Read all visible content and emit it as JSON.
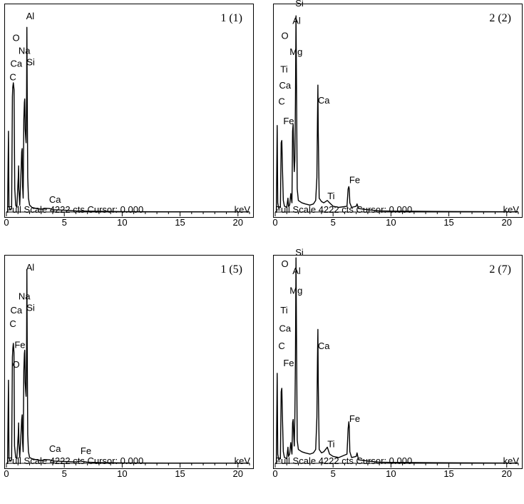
{
  "chart_data": [
    {
      "type": "line",
      "title": "1 (1)",
      "xlabel": "keV",
      "xlim": [
        0,
        21
      ],
      "x_ticks": [
        "0",
        "5",
        "10",
        "15",
        "20"
      ],
      "footer": "Full Scale 4222 cts Cursor: 0.000",
      "unit": "keV",
      "spectrum": [
        [
          0,
          0
        ],
        [
          0.1,
          0.4
        ],
        [
          0.18,
          70
        ],
        [
          0.22,
          5
        ],
        [
          0.3,
          2
        ],
        [
          0.45,
          3
        ],
        [
          0.52,
          100
        ],
        [
          0.55,
          108
        ],
        [
          0.6,
          112
        ],
        [
          0.66,
          106
        ],
        [
          0.72,
          20
        ],
        [
          0.8,
          6
        ],
        [
          0.9,
          4
        ],
        [
          1.02,
          30
        ],
        [
          1.05,
          40
        ],
        [
          1.08,
          20
        ],
        [
          1.15,
          6
        ],
        [
          1.28,
          40
        ],
        [
          1.32,
          52
        ],
        [
          1.36,
          55
        ],
        [
          1.4,
          22
        ],
        [
          1.45,
          12
        ],
        [
          1.5,
          80
        ],
        [
          1.55,
          95
        ],
        [
          1.58,
          98
        ],
        [
          1.62,
          72
        ],
        [
          1.67,
          64
        ],
        [
          1.7,
          60
        ],
        [
          1.74,
          100
        ],
        [
          1.77,
          160
        ],
        [
          1.8,
          100
        ],
        [
          1.84,
          30
        ],
        [
          1.9,
          12
        ],
        [
          2.0,
          6
        ],
        [
          2.2,
          4
        ],
        [
          2.6,
          3
        ],
        [
          3.0,
          2.5
        ],
        [
          3.4,
          3.2
        ],
        [
          3.7,
          3
        ],
        [
          4.1,
          2
        ],
        [
          4.5,
          1.8
        ],
        [
          5.0,
          1.6
        ],
        [
          6.0,
          1
        ],
        [
          8.0,
          0.6
        ],
        [
          10,
          0.4
        ],
        [
          14,
          0.2
        ],
        [
          21,
          0.1
        ]
      ],
      "peaks": [
        {
          "label": "Al",
          "x": 1.7,
          "y": 167
        },
        {
          "label": "O",
          "x": 0.52,
          "y": 148
        },
        {
          "label": "Na",
          "x": 1.04,
          "y": 137
        },
        {
          "label": "Si",
          "x": 1.74,
          "y": 127
        },
        {
          "label": "Ca",
          "x": 0.34,
          "y": 126
        },
        {
          "label": "C",
          "x": 0.27,
          "y": 114
        },
        {
          "label": "Ca",
          "x": 3.69,
          "y": 8
        }
      ]
    },
    {
      "type": "line",
      "title": "2 (2)",
      "xlabel": "keV",
      "xlim": [
        0,
        21
      ],
      "x_ticks": [
        "0",
        "5",
        "10",
        "15",
        "20"
      ],
      "footer": "Full Scale 4222 cts Cursor: 0.000",
      "unit": "keV",
      "spectrum": [
        [
          0,
          0
        ],
        [
          0.1,
          0.5
        ],
        [
          0.17,
          75
        ],
        [
          0.22,
          8
        ],
        [
          0.3,
          3
        ],
        [
          0.45,
          4
        ],
        [
          0.52,
          60
        ],
        [
          0.57,
          62
        ],
        [
          0.62,
          40
        ],
        [
          0.7,
          10
        ],
        [
          0.8,
          5
        ],
        [
          1.0,
          4
        ],
        [
          1.1,
          12
        ],
        [
          1.15,
          5
        ],
        [
          1.25,
          6
        ],
        [
          1.35,
          16
        ],
        [
          1.45,
          8
        ],
        [
          1.5,
          70
        ],
        [
          1.55,
          76
        ],
        [
          1.6,
          50
        ],
        [
          1.65,
          35
        ],
        [
          1.7,
          45
        ],
        [
          1.75,
          95
        ],
        [
          1.8,
          170
        ],
        [
          1.84,
          110
        ],
        [
          1.9,
          20
        ],
        [
          2.0,
          10
        ],
        [
          2.3,
          8
        ],
        [
          2.6,
          7
        ],
        [
          3.0,
          6
        ],
        [
          3.3,
          7
        ],
        [
          3.5,
          10
        ],
        [
          3.6,
          30
        ],
        [
          3.65,
          80
        ],
        [
          3.69,
          110
        ],
        [
          3.72,
          70
        ],
        [
          3.8,
          12
        ],
        [
          4.0,
          9
        ],
        [
          4.2,
          8
        ],
        [
          4.5,
          10
        ],
        [
          4.7,
          8
        ],
        [
          5.0,
          5
        ],
        [
          5.5,
          4
        ],
        [
          6.2,
          5
        ],
        [
          6.3,
          20
        ],
        [
          6.36,
          22
        ],
        [
          6.4,
          20
        ],
        [
          6.45,
          8
        ],
        [
          6.6,
          4
        ],
        [
          7.0,
          5
        ],
        [
          7.07,
          7
        ],
        [
          7.2,
          3
        ],
        [
          8.0,
          2
        ],
        [
          9.0,
          1
        ],
        [
          10,
          0.8
        ],
        [
          14,
          0.5
        ],
        [
          21,
          0.2
        ]
      ],
      "peaks": [
        {
          "label": "Si",
          "x": 1.74,
          "y": 178
        },
        {
          "label": "Al",
          "x": 1.49,
          "y": 163
        },
        {
          "label": "O",
          "x": 0.52,
          "y": 150
        },
        {
          "label": "Mg",
          "x": 1.25,
          "y": 136
        },
        {
          "label": "Ti",
          "x": 0.45,
          "y": 121
        },
        {
          "label": "Ca",
          "x": 0.34,
          "y": 107
        },
        {
          "label": "C",
          "x": 0.27,
          "y": 93
        },
        {
          "label": "Ca",
          "x": 3.69,
          "y": 94
        },
        {
          "label": "Fe",
          "x": 0.7,
          "y": 76
        },
        {
          "label": "Fe",
          "x": 6.4,
          "y": 25
        },
        {
          "label": "Ti",
          "x": 4.51,
          "y": 11
        }
      ]
    },
    {
      "type": "line",
      "title": "1 (5)",
      "xlabel": "keV",
      "xlim": [
        0,
        21
      ],
      "x_ticks": [
        "0",
        "5",
        "10",
        "15",
        "20"
      ],
      "footer": "Full Scale 4222 cts Cursor: 0.000",
      "unit": "keV",
      "spectrum": [
        [
          0,
          0
        ],
        [
          0.1,
          0.4
        ],
        [
          0.18,
          72
        ],
        [
          0.22,
          5
        ],
        [
          0.3,
          2
        ],
        [
          0.45,
          3
        ],
        [
          0.52,
          92
        ],
        [
          0.56,
          100
        ],
        [
          0.6,
          104
        ],
        [
          0.65,
          96
        ],
        [
          0.7,
          15
        ],
        [
          0.8,
          5
        ],
        [
          0.9,
          4
        ],
        [
          1.02,
          25
        ],
        [
          1.05,
          35
        ],
        [
          1.08,
          18
        ],
        [
          1.15,
          5
        ],
        [
          1.28,
          30
        ],
        [
          1.32,
          38
        ],
        [
          1.36,
          42
        ],
        [
          1.4,
          18
        ],
        [
          1.45,
          10
        ],
        [
          1.5,
          80
        ],
        [
          1.55,
          95
        ],
        [
          1.58,
          98
        ],
        [
          1.62,
          70
        ],
        [
          1.67,
          62
        ],
        [
          1.7,
          58
        ],
        [
          1.74,
          100
        ],
        [
          1.77,
          168
        ],
        [
          1.8,
          100
        ],
        [
          1.84,
          25
        ],
        [
          1.9,
          10
        ],
        [
          2.0,
          5
        ],
        [
          2.2,
          4
        ],
        [
          2.6,
          3
        ],
        [
          3.0,
          2.5
        ],
        [
          3.4,
          3.2
        ],
        [
          3.7,
          3
        ],
        [
          4.1,
          2
        ],
        [
          4.5,
          1.8
        ],
        [
          5.0,
          1.6
        ],
        [
          6.0,
          1.2
        ],
        [
          6.4,
          2
        ],
        [
          7.0,
          1
        ],
        [
          8.0,
          0.6
        ],
        [
          10,
          0.4
        ],
        [
          14,
          0.2
        ],
        [
          21,
          0.1
        ]
      ],
      "peaks": [
        {
          "label": "Al",
          "x": 1.7,
          "y": 167
        },
        {
          "label": "Na",
          "x": 1.04,
          "y": 142
        },
        {
          "label": "Si",
          "x": 1.74,
          "y": 132
        },
        {
          "label": "Ca",
          "x": 0.34,
          "y": 130
        },
        {
          "label": "C",
          "x": 0.27,
          "y": 118
        },
        {
          "label": "Fe",
          "x": 0.7,
          "y": 100
        },
        {
          "label": "O",
          "x": 0.52,
          "y": 83
        },
        {
          "label": "Ca",
          "x": 3.69,
          "y": 10
        },
        {
          "label": "Fe",
          "x": 6.4,
          "y": 8
        }
      ]
    },
    {
      "type": "line",
      "title": "2 (7)",
      "xlabel": "keV",
      "xlim": [
        0,
        21
      ],
      "x_ticks": [
        "0",
        "5",
        "10",
        "15",
        "20"
      ],
      "footer": "Full Scale 4222 cts Cursor: 0.000",
      "unit": "keV",
      "spectrum": [
        [
          0,
          0
        ],
        [
          0.1,
          0.5
        ],
        [
          0.17,
          78
        ],
        [
          0.22,
          8
        ],
        [
          0.3,
          3
        ],
        [
          0.45,
          4
        ],
        [
          0.52,
          62
        ],
        [
          0.57,
          65
        ],
        [
          0.62,
          42
        ],
        [
          0.7,
          10
        ],
        [
          0.8,
          5
        ],
        [
          1.0,
          4
        ],
        [
          1.1,
          14
        ],
        [
          1.15,
          6
        ],
        [
          1.25,
          8
        ],
        [
          1.35,
          18
        ],
        [
          1.45,
          8
        ],
        [
          1.5,
          35
        ],
        [
          1.55,
          38
        ],
        [
          1.6,
          25
        ],
        [
          1.65,
          15
        ],
        [
          1.7,
          40
        ],
        [
          1.75,
          90
        ],
        [
          1.8,
          178
        ],
        [
          1.84,
          110
        ],
        [
          1.9,
          20
        ],
        [
          2.0,
          12
        ],
        [
          2.3,
          10
        ],
        [
          2.6,
          9
        ],
        [
          3.0,
          8
        ],
        [
          3.3,
          9
        ],
        [
          3.5,
          12
        ],
        [
          3.6,
          40
        ],
        [
          3.65,
          90
        ],
        [
          3.69,
          116
        ],
        [
          3.72,
          70
        ],
        [
          3.8,
          12
        ],
        [
          4.0,
          9
        ],
        [
          4.2,
          10
        ],
        [
          4.5,
          14
        ],
        [
          4.7,
          8
        ],
        [
          5.0,
          6
        ],
        [
          5.5,
          5
        ],
        [
          6.2,
          8
        ],
        [
          6.3,
          30
        ],
        [
          6.36,
          36
        ],
        [
          6.4,
          32
        ],
        [
          6.45,
          10
        ],
        [
          6.6,
          5
        ],
        [
          7.0,
          6
        ],
        [
          7.07,
          9
        ],
        [
          7.2,
          3
        ],
        [
          8.0,
          2
        ],
        [
          9.0,
          1
        ],
        [
          10,
          0.8
        ],
        [
          14,
          0.5
        ],
        [
          21,
          0.2
        ]
      ],
      "peaks": [
        {
          "label": "Si",
          "x": 1.74,
          "y": 180
        },
        {
          "label": "O",
          "x": 0.52,
          "y": 170
        },
        {
          "label": "Al",
          "x": 1.49,
          "y": 164
        },
        {
          "label": "Mg",
          "x": 1.25,
          "y": 147
        },
        {
          "label": "Ti",
          "x": 0.45,
          "y": 130
        },
        {
          "label": "Ca",
          "x": 0.34,
          "y": 114
        },
        {
          "label": "C",
          "x": 0.27,
          "y": 99
        },
        {
          "label": "Fe",
          "x": 0.7,
          "y": 84
        },
        {
          "label": "Ca",
          "x": 3.69,
          "y": 99
        },
        {
          "label": "Fe",
          "x": 6.4,
          "y": 36
        },
        {
          "label": "Ti",
          "x": 4.51,
          "y": 14
        }
      ]
    }
  ]
}
